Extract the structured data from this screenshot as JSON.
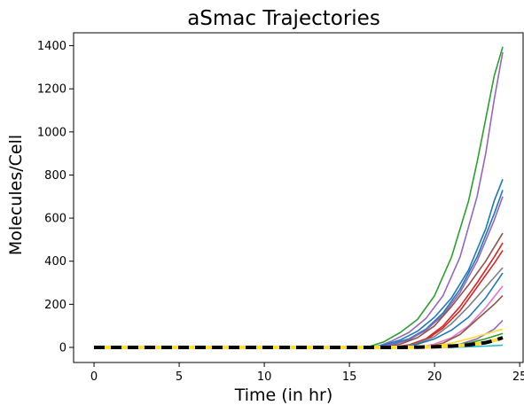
{
  "chart_data": {
    "type": "line",
    "title": "aSmac Trajectories",
    "xlabel": "Time (in hr)",
    "ylabel": "Molecules/Cell",
    "xlim": [
      -1.2,
      25.2
    ],
    "ylim": [
      -70,
      1460
    ],
    "x_ticks": [
      0,
      5,
      10,
      15,
      20,
      25
    ],
    "y_ticks": [
      0,
      200,
      400,
      600,
      800,
      1000,
      1200,
      1400
    ],
    "grid": false,
    "legend": "none",
    "series": [
      {
        "color": "#2ca02c",
        "x": [
          0,
          16,
          17,
          18,
          19,
          20,
          21,
          22,
          22.5,
          23,
          23.5,
          24
        ],
        "values": [
          0,
          0,
          25,
          70,
          130,
          240,
          420,
          680,
          860,
          1060,
          1260,
          1395
        ]
      },
      {
        "color": "#9467bd",
        "x": [
          0,
          16.5,
          17.5,
          18.5,
          19.5,
          20.5,
          21.5,
          22.5,
          23,
          23.5,
          24
        ],
        "values": [
          0,
          0,
          30,
          70,
          135,
          240,
          420,
          700,
          900,
          1150,
          1370
        ]
      },
      {
        "color": "#1f77b4",
        "x": [
          0,
          16,
          17,
          18,
          19,
          20,
          21,
          22,
          23,
          23.5,
          24
        ],
        "values": [
          0,
          0,
          10,
          35,
          75,
          140,
          230,
          360,
          550,
          680,
          780
        ]
      },
      {
        "color": "#1f77b4",
        "x": [
          0,
          16.5,
          17.5,
          18.5,
          19.5,
          20.5,
          21.5,
          22.5,
          23.5,
          24
        ],
        "values": [
          0,
          0,
          15,
          40,
          85,
          160,
          270,
          420,
          620,
          730
        ]
      },
      {
        "color": "#9467bd",
        "x": [
          0,
          16.5,
          17.5,
          18.5,
          19.5,
          20.5,
          21.5,
          22.5,
          23.5,
          24
        ],
        "values": [
          0,
          0,
          12,
          35,
          80,
          150,
          255,
          400,
          590,
          700
        ]
      },
      {
        "color": "#8c564b",
        "x": [
          0,
          17,
          18,
          19,
          20,
          21,
          22,
          23,
          24
        ],
        "values": [
          0,
          0,
          15,
          45,
          100,
          190,
          290,
          400,
          530
        ]
      },
      {
        "color": "#d62728",
        "x": [
          0,
          17.5,
          18.5,
          19.5,
          20.5,
          21.5,
          22.5,
          23.5,
          24
        ],
        "values": [
          0,
          0,
          12,
          40,
          100,
          190,
          300,
          420,
          485
        ]
      },
      {
        "color": "#d62728",
        "x": [
          0,
          17.5,
          18.5,
          19.5,
          20.5,
          21.5,
          22.5,
          23.5,
          24
        ],
        "values": [
          0,
          0,
          10,
          35,
          90,
          170,
          280,
          390,
          450
        ]
      },
      {
        "color": "#7f7f7f",
        "x": [
          0,
          18,
          19,
          20,
          21,
          22,
          23,
          24
        ],
        "values": [
          0,
          0,
          20,
          50,
          110,
          190,
          280,
          370
        ]
      },
      {
        "color": "#1f77b4",
        "x": [
          0,
          18,
          19,
          20,
          21,
          22,
          23,
          24
        ],
        "values": [
          0,
          0,
          15,
          40,
          80,
          140,
          230,
          345
        ]
      },
      {
        "color": "#e377c2",
        "x": [
          0,
          19,
          20,
          21,
          22,
          23,
          24
        ],
        "values": [
          0,
          0,
          15,
          45,
          100,
          185,
          285
        ]
      },
      {
        "color": "#8c564b",
        "x": [
          0,
          19.5,
          20.5,
          21.5,
          22.5,
          23.5,
          24
        ],
        "values": [
          0,
          0,
          20,
          60,
          130,
          200,
          240
        ]
      },
      {
        "color": "#9467bd",
        "x": [
          0,
          20.5,
          21.5,
          22.5,
          23.5,
          24
        ],
        "values": [
          0,
          0,
          15,
          40,
          85,
          125
        ]
      },
      {
        "color": "#2ca02c",
        "x": [
          0,
          20,
          21,
          22,
          23,
          24
        ],
        "values": [
          0,
          0,
          8,
          20,
          40,
          65
        ]
      },
      {
        "color": "#ffdd33",
        "x": [
          0,
          19,
          20,
          21,
          22,
          23,
          24
        ],
        "values": [
          0,
          2,
          8,
          20,
          40,
          62,
          85
        ]
      },
      {
        "color": "#17becf",
        "x": [
          0,
          21,
          22,
          23,
          24
        ],
        "values": [
          0,
          0,
          3,
          6,
          10
        ]
      },
      {
        "color": "#000000",
        "dashed": true,
        "x": [
          0,
          18,
          19,
          20,
          21,
          22,
          23,
          23.5,
          24
        ],
        "values": [
          0,
          0,
          1,
          3,
          6,
          12,
          22,
          32,
          45
        ]
      }
    ]
  }
}
